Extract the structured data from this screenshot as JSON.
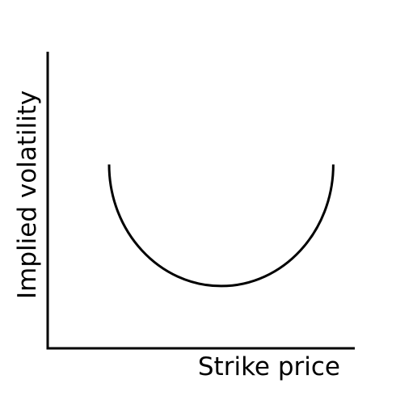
{
  "chart_data": {
    "type": "line",
    "title": "",
    "xlabel": "Strike price",
    "ylabel": "Implied volatility",
    "ticks": "none",
    "grid": false,
    "legend": "none",
    "line_color": "#000000",
    "xlim": [
      0,
      1
    ],
    "ylim": [
      0,
      1
    ],
    "series": [
      {
        "shape": "u-curve",
        "x": [
          0.2,
          0.31,
          0.42,
          0.56,
          0.72,
          0.83,
          0.93
        ],
        "values": [
          0.62,
          0.3,
          0.23,
          0.21,
          0.25,
          0.34,
          0.62
        ]
      }
    ]
  }
}
